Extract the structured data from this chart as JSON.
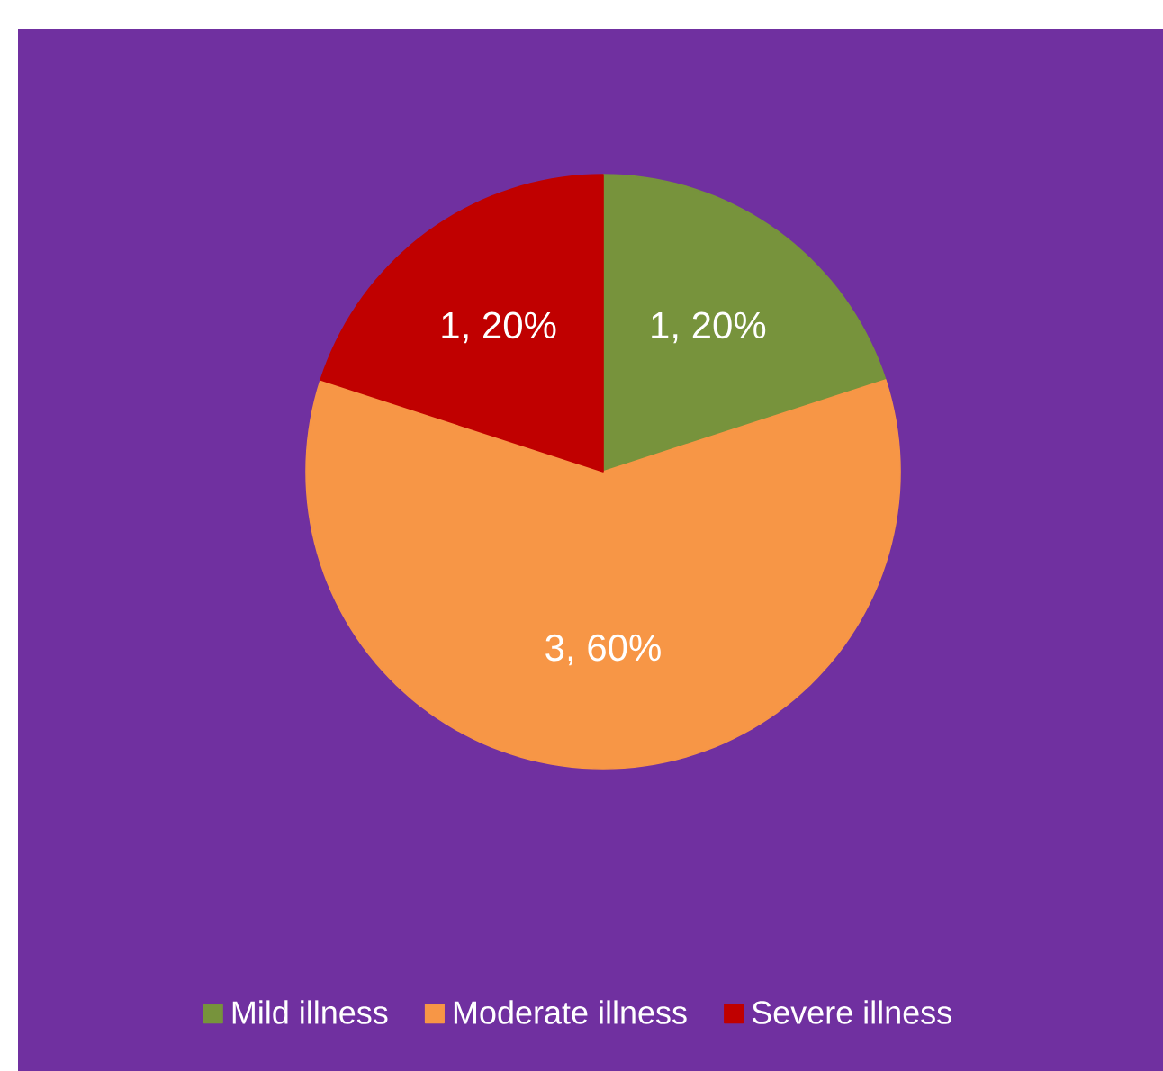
{
  "chart_data": {
    "type": "pie",
    "categories": [
      "Mild illness",
      "Moderate illness",
      "Severe illness"
    ],
    "values": [
      1,
      3,
      1
    ],
    "colors": [
      "#77933c",
      "#f79646",
      "#c00000"
    ],
    "value_labels": [
      "1, 20%",
      "3, 60%",
      "1, 20%"
    ],
    "legend": "bottom"
  }
}
